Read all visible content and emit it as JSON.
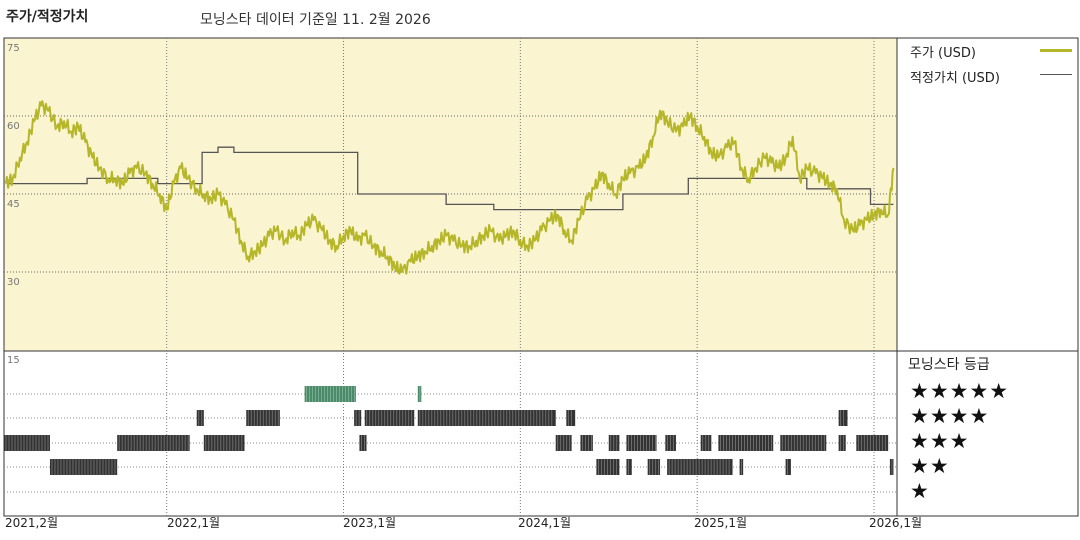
{
  "chart_data": {
    "type": "line",
    "title": "주가/적정가치",
    "subtitle": "모닝스타 데이터 기준일 11. 2월 2026",
    "yticks": [
      75,
      60,
      45,
      30
    ],
    "ylim": [
      15,
      75
    ],
    "rating_ytick": "15",
    "x_labels": [
      "2021,2월",
      "2022,1월",
      "2023,1월",
      "2024,1월",
      "2025,1월",
      "2026,1월"
    ],
    "x_range": [
      "2021-02",
      "2026-02"
    ],
    "series": [
      {
        "name": "주가 (USD)",
        "color": "#b5b629",
        "x": [
          2021.09,
          2021.13,
          2021.17,
          2021.21,
          2021.25,
          2021.29,
          2021.33,
          2021.38,
          2021.42,
          2021.46,
          2021.5,
          2021.54,
          2021.58,
          2021.62,
          2021.67,
          2021.71,
          2021.75,
          2021.79,
          2021.83,
          2021.88,
          2021.92,
          2021.96,
          2022.0,
          2022.04,
          2022.08,
          2022.12,
          2022.17,
          2022.21,
          2022.25,
          2022.29,
          2022.33,
          2022.38,
          2022.42,
          2022.46,
          2022.5,
          2022.54,
          2022.58,
          2022.62,
          2022.67,
          2022.71,
          2022.75,
          2022.79,
          2022.83,
          2022.88,
          2022.92,
          2022.96,
          2023.0,
          2023.04,
          2023.08,
          2023.12,
          2023.17,
          2023.21,
          2023.25,
          2023.29,
          2023.33,
          2023.38,
          2023.42,
          2023.46,
          2023.5,
          2023.54,
          2023.58,
          2023.62,
          2023.67,
          2023.71,
          2023.75,
          2023.79,
          2023.83,
          2023.88,
          2023.92,
          2023.96,
          2024.0,
          2024.04,
          2024.08,
          2024.12,
          2024.17,
          2024.21,
          2024.25,
          2024.29,
          2024.33,
          2024.38,
          2024.42,
          2024.46,
          2024.5,
          2024.54,
          2024.58,
          2024.62,
          2024.67,
          2024.71,
          2024.75,
          2024.79,
          2024.83,
          2024.88,
          2024.92,
          2024.96,
          2025.0,
          2025.04,
          2025.08,
          2025.12,
          2025.17,
          2025.21,
          2025.25,
          2025.29,
          2025.33,
          2025.38,
          2025.42,
          2025.46,
          2025.5,
          2025.54,
          2025.58,
          2025.62,
          2025.67,
          2025.71,
          2025.75,
          2025.79,
          2025.83,
          2025.88,
          2025.92,
          2025.96,
          2026.0,
          2026.04,
          2026.08,
          2026.11
        ],
        "values": [
          47,
          48,
          52,
          55,
          59,
          62,
          61,
          58,
          59,
          57,
          58,
          55,
          52,
          50,
          48,
          48,
          47,
          49,
          50,
          49,
          47,
          45,
          42,
          47,
          50,
          48,
          46,
          45,
          44,
          45,
          43,
          40,
          36,
          33,
          34,
          35,
          37,
          38,
          36,
          38,
          37,
          39,
          40,
          38,
          36,
          35,
          37,
          38,
          36,
          37,
          35,
          34,
          33,
          31,
          30,
          32,
          33,
          34,
          35,
          36,
          37,
          36,
          35,
          35,
          36,
          37,
          38,
          36,
          37,
          38,
          36,
          35,
          36,
          38,
          40,
          41,
          38,
          36,
          40,
          44,
          46,
          49,
          47,
          45,
          48,
          49,
          50,
          52,
          56,
          61,
          59,
          57,
          58,
          60,
          58,
          56,
          53,
          52,
          54,
          55,
          50,
          48,
          50,
          52,
          51,
          50,
          52,
          56,
          48,
          50,
          49,
          48,
          47,
          46,
          40,
          38,
          39,
          40,
          41,
          42,
          41,
          50
        ]
      },
      {
        "name": "적정가치 (USD)",
        "color": "#555555",
        "x": [
          2021.1,
          2021.55,
          2021.55,
          2021.95,
          2021.95,
          2022.2,
          2022.2,
          2022.29,
          2022.29,
          2022.38,
          2022.38,
          2022.5,
          2022.5,
          2023.08,
          2023.08,
          2023.58,
          2023.58,
          2023.85,
          2023.85,
          2024.35,
          2024.35,
          2024.58,
          2024.58,
          2024.75,
          2024.75,
          2024.95,
          2024.95,
          2025.3,
          2025.3,
          2025.62,
          2025.62,
          2025.98,
          2025.98,
          2026.06,
          2026.06,
          2026.11
        ],
        "values": [
          47,
          47,
          48,
          48,
          47,
          47,
          53,
          53,
          54,
          54,
          53,
          53,
          53,
          53,
          45,
          45,
          43,
          43,
          42,
          42,
          42,
          42,
          45,
          45,
          45,
          45,
          48,
          48,
          48,
          48,
          46,
          46,
          43,
          43,
          43,
          43
        ]
      }
    ],
    "rating_title": "모닝스타 등급",
    "ratings": [
      {
        "stars": "★★★★★",
        "spans": [
          [
            2022.78,
            2023.07
          ],
          [
            2023.42,
            2023.44
          ]
        ],
        "color": "#4a8b6a"
      },
      {
        "stars": "★★★★",
        "spans": [
          [
            2022.17,
            2022.21
          ],
          [
            2022.45,
            2022.64
          ],
          [
            2023.06,
            2023.1
          ],
          [
            2023.12,
            2023.4
          ],
          [
            2023.42,
            2024.2
          ],
          [
            2024.26,
            2024.31
          ],
          [
            2025.8,
            2025.85
          ]
        ],
        "color": "#333333"
      },
      {
        "stars": "★★★",
        "spans": [
          [
            2021.08,
            2021.34
          ],
          [
            2021.72,
            2022.13
          ],
          [
            2022.21,
            2022.44
          ],
          [
            2023.09,
            2023.13
          ],
          [
            2024.2,
            2024.29
          ],
          [
            2024.34,
            2024.41
          ],
          [
            2024.5,
            2024.56
          ],
          [
            2024.6,
            2024.77
          ],
          [
            2024.82,
            2024.88
          ],
          [
            2025.02,
            2025.08
          ],
          [
            2025.12,
            2025.43
          ],
          [
            2025.47,
            2025.73
          ],
          [
            2025.8,
            2025.84
          ],
          [
            2025.9,
            2026.08
          ]
        ],
        "color": "#333333"
      },
      {
        "stars": "★★",
        "spans": [
          [
            2021.34,
            2021.72
          ],
          [
            2024.43,
            2024.56
          ],
          [
            2024.6,
            2024.63
          ],
          [
            2024.72,
            2024.79
          ],
          [
            2024.83,
            2025.2
          ],
          [
            2025.24,
            2025.26
          ],
          [
            2025.5,
            2025.53
          ],
          [
            2026.09,
            2026.11
          ]
        ],
        "color": "#333333"
      },
      {
        "stars": "★",
        "spans": [],
        "color": "#333333"
      }
    ],
    "grid": true,
    "legend": "right"
  }
}
